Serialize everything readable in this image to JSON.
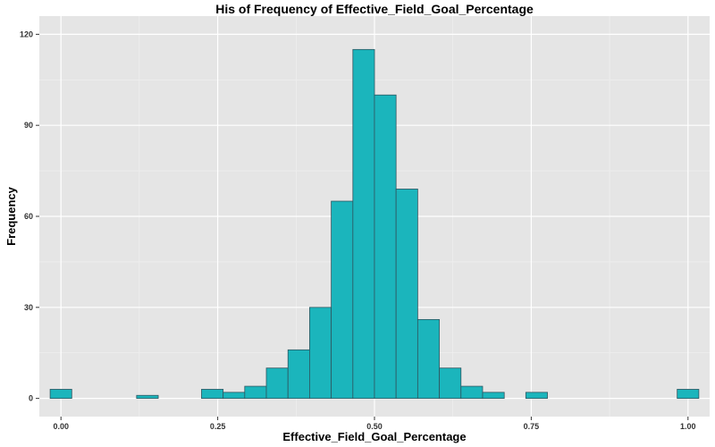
{
  "chart_data": {
    "type": "bar",
    "title": "His of Frequency of Effective_Field_Goal_Percentage",
    "xlabel": "Effective_Field_Goal_Percentage",
    "ylabel": "Frequency",
    "xlim": [
      -0.0345,
      1.0345
    ],
    "ylim": [
      -6,
      126
    ],
    "bin_width": 0.0345,
    "x_ticks": [
      0.0,
      0.25,
      0.5,
      0.75,
      1.0
    ],
    "x_tick_labels": [
      "0.00",
      "0.25",
      "0.50",
      "0.75",
      "1.00"
    ],
    "y_ticks": [
      0,
      30,
      60,
      90,
      120
    ],
    "y_tick_labels": [
      "0",
      "30",
      "60",
      "90",
      "120"
    ],
    "bins": [
      {
        "center": 0.0,
        "count": 3
      },
      {
        "center": 0.0345,
        "count": 0
      },
      {
        "center": 0.069,
        "count": 0
      },
      {
        "center": 0.1034,
        "count": 0
      },
      {
        "center": 0.1379,
        "count": 1
      },
      {
        "center": 0.1724,
        "count": 0
      },
      {
        "center": 0.2069,
        "count": 0
      },
      {
        "center": 0.2414,
        "count": 3
      },
      {
        "center": 0.2759,
        "count": 2
      },
      {
        "center": 0.3103,
        "count": 4
      },
      {
        "center": 0.3448,
        "count": 10
      },
      {
        "center": 0.3793,
        "count": 16
      },
      {
        "center": 0.4138,
        "count": 30
      },
      {
        "center": 0.4483,
        "count": 65
      },
      {
        "center": 0.4828,
        "count": 115
      },
      {
        "center": 0.5172,
        "count": 100
      },
      {
        "center": 0.5517,
        "count": 69
      },
      {
        "center": 0.5862,
        "count": 26
      },
      {
        "center": 0.6207,
        "count": 10
      },
      {
        "center": 0.6552,
        "count": 4
      },
      {
        "center": 0.6897,
        "count": 2
      },
      {
        "center": 0.7241,
        "count": 0
      },
      {
        "center": 0.7586,
        "count": 2
      },
      {
        "center": 0.7931,
        "count": 0
      },
      {
        "center": 0.8276,
        "count": 0
      },
      {
        "center": 0.8621,
        "count": 0
      },
      {
        "center": 0.8966,
        "count": 0
      },
      {
        "center": 0.931,
        "count": 0
      },
      {
        "center": 0.9655,
        "count": 0
      },
      {
        "center": 1.0,
        "count": 3
      }
    ],
    "grid": true,
    "legend": "none",
    "colors": {
      "fill": "#1bb5bc",
      "edge": "#2f5660",
      "panel": "#e5e5e5",
      "grid_major": "#ffffff",
      "grid_minor": "#f0f0f0",
      "text": "#000000",
      "tick": "#333333"
    }
  }
}
